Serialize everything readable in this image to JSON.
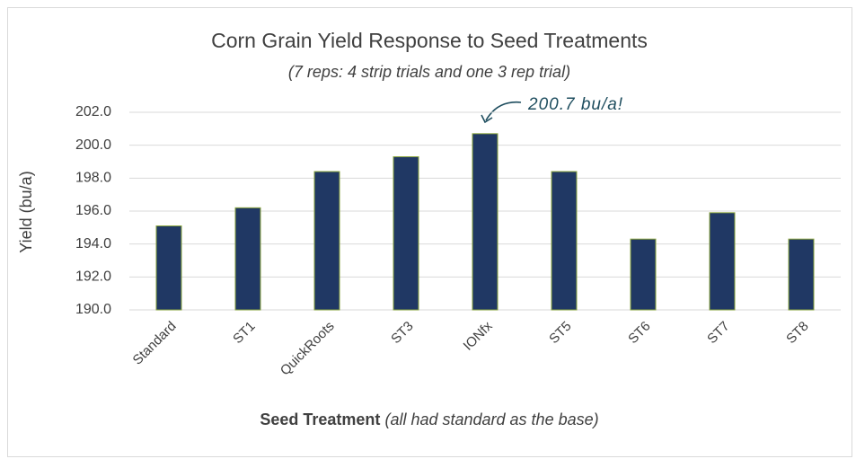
{
  "chart_data": {
    "type": "bar",
    "title": "Corn Grain Yield Response to Seed Treatments",
    "subtitle": "(7 reps: 4 strip trials and one 3 rep trial)",
    "ylabel": "Yield (bu/a)",
    "xlabel": "Seed Treatment",
    "xlabel_note": "(all had standard as the base)",
    "annotation": "200.7 bu/a!",
    "categories": [
      "Standard",
      "ST1",
      "QuickRoots",
      "ST3",
      "IONfx",
      "ST5",
      "ST6",
      "ST7",
      "ST8"
    ],
    "values": [
      195.1,
      196.2,
      198.4,
      199.3,
      200.7,
      198.4,
      194.3,
      195.9,
      194.3
    ],
    "color": "#203864",
    "edge_color": "#8aa53c",
    "ylim": [
      190,
      202
    ],
    "yticks": [
      {
        "value": 190,
        "label": "190.0"
      },
      {
        "value": 192,
        "label": "192.0"
      },
      {
        "value": 194,
        "label": "194.0"
      },
      {
        "value": 196,
        "label": "196.0"
      },
      {
        "value": 198,
        "label": "198.0"
      },
      {
        "value": 200,
        "label": "200.0"
      },
      {
        "value": 202,
        "label": "202.0"
      }
    ],
    "grid": true
  }
}
